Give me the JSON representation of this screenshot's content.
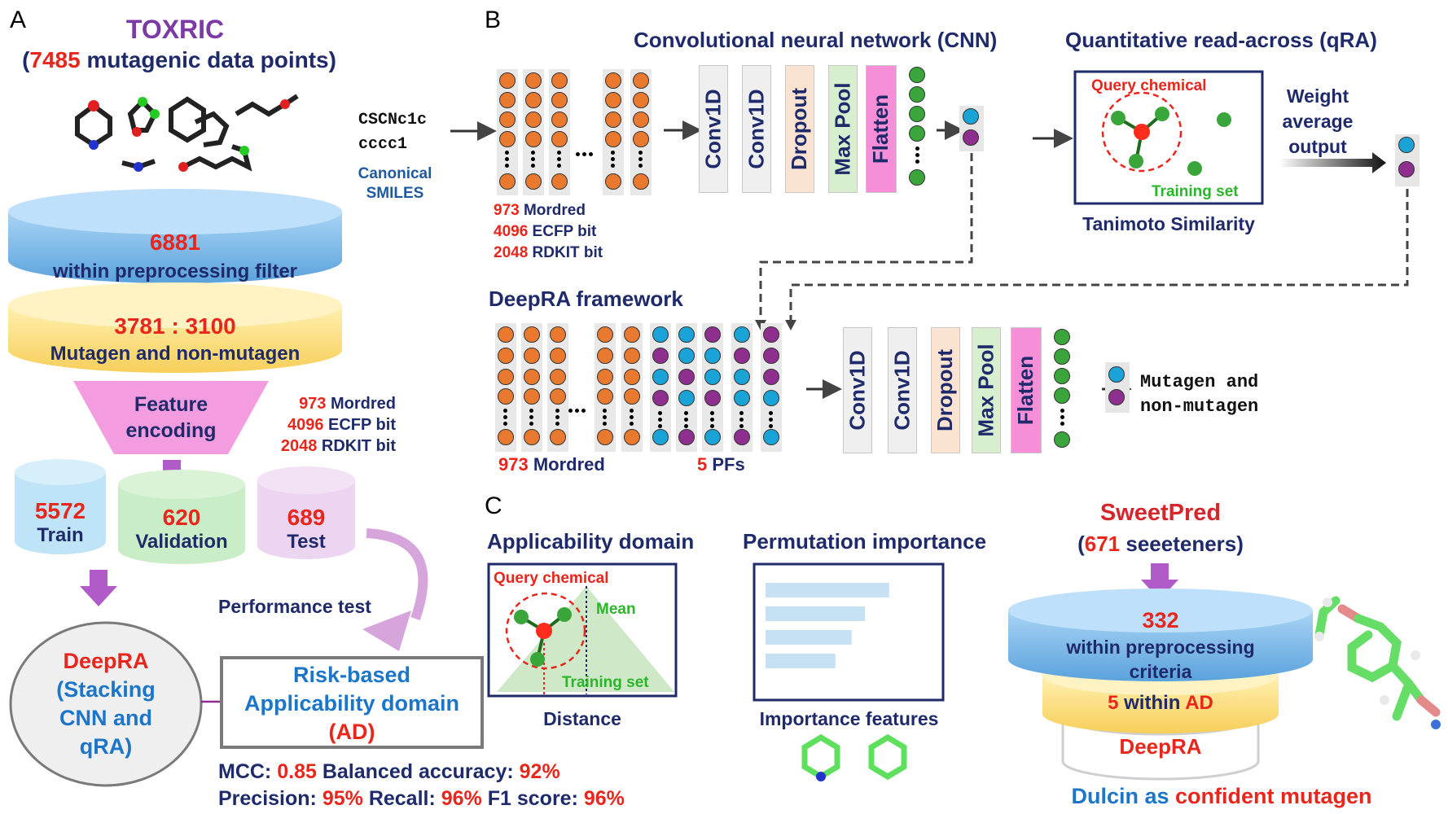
{
  "panel_letters": {
    "a": "A",
    "b": "B",
    "c": "C"
  },
  "panelA": {
    "toxric": "TOXRIC",
    "data_points": {
      "open": "(",
      "count": "7485",
      "rest": " mutagenic data points)"
    },
    "filter_count": "6881",
    "filter_label": "within preprocessing filter",
    "ratio": "3781 : 3100",
    "ratio_label": "Mutagen and non-mutagen",
    "feature_encoding": {
      "line1": "Feature",
      "line2": "encoding"
    },
    "features": [
      {
        "num": "973",
        "label": " Mordred"
      },
      {
        "num": "4096",
        "label": " ECFP bit"
      },
      {
        "num": "2048",
        "label": " RDKIT bit"
      }
    ],
    "split": {
      "train": {
        "num": "5572",
        "label": "Train"
      },
      "validation": {
        "num": "620",
        "label": "Validation"
      },
      "test": {
        "num": "689",
        "label": "Test"
      }
    },
    "performance_test": "Performance test",
    "deepra": {
      "title": "DeepRA",
      "l1": "(Stacking",
      "l2": "CNN and",
      "l3": "qRA)"
    },
    "ad_box": {
      "l1": "Risk-based",
      "l2": "Applicability domain",
      "l3": "(AD)"
    },
    "metrics": {
      "mcc_label": "MCC: ",
      "mcc": "0.85",
      "bacc_label": " Balanced accuracy: ",
      "bacc": "92%",
      "prec_label": "Precision: ",
      "prec": "95%",
      "recall_label": " Recall: ",
      "recall": "96%",
      "f1_label": " F1 score: ",
      "f1": "96%"
    }
  },
  "panelB": {
    "cnn_title": "Convolutional neural network (CNN)",
    "qra_title": "Quantitative read-across (qRA)",
    "smiles": {
      "l1": "CSCNc1c",
      "l2": "cccc1"
    },
    "canonical": {
      "l1": "Canonical",
      "l2": "SMILES"
    },
    "input_features": [
      {
        "num": "973",
        "label": " Mordred"
      },
      {
        "num": "4096",
        "label": " ECFP bit"
      },
      {
        "num": "2048",
        "label": " RDKIT bit"
      }
    ],
    "layers": [
      "Conv1D",
      "Conv1D",
      "Dropout",
      "Max Pool",
      "Flatten"
    ],
    "query_chemical": "Query chemical",
    "training_set": "Training set",
    "tanimoto": "Tanimoto Similarity",
    "weight_avg": {
      "l1": "Weight",
      "l2": "average",
      "l3": "output"
    },
    "deepra_framework": "DeepRA framework",
    "mordred_bottom": {
      "num": "973",
      "label": " Mordred"
    },
    "pfs": {
      "num": "5",
      "label": " PFs"
    },
    "output": {
      "l1": "Mutagen and",
      "l2": "non-mutagen"
    }
  },
  "panelC": {
    "ad_title": "Applicability domain",
    "query_chemical": "Query chemical",
    "mean": "Mean",
    "training_set": "Training set",
    "distance": "Distance",
    "perm_title": "Permutation importance",
    "importance_features": "Importance features",
    "perm_bars": [
      0.92,
      0.74,
      0.64,
      0.52
    ],
    "sweetpred": "SweetPred",
    "sweeteners": {
      "open": "(",
      "num": "671",
      "rest": " seeeteners)"
    },
    "within_count": "332",
    "within_l1": "within preprocessing",
    "within_l2": "criteria",
    "within_ad": {
      "num": "5",
      "mid": " within ",
      "ad": "AD"
    },
    "deepra": "DeepRA",
    "dulcin": {
      "a": "Dulcin as ",
      "b": "confident mutagen"
    }
  },
  "colors": {
    "orange": "#e8792f",
    "blue_node": "#1aa3d6",
    "purple_node": "#8e2e8e",
    "green_node": "#3aa53a",
    "navy": "#1f2a6b",
    "red": "#e8261c"
  }
}
